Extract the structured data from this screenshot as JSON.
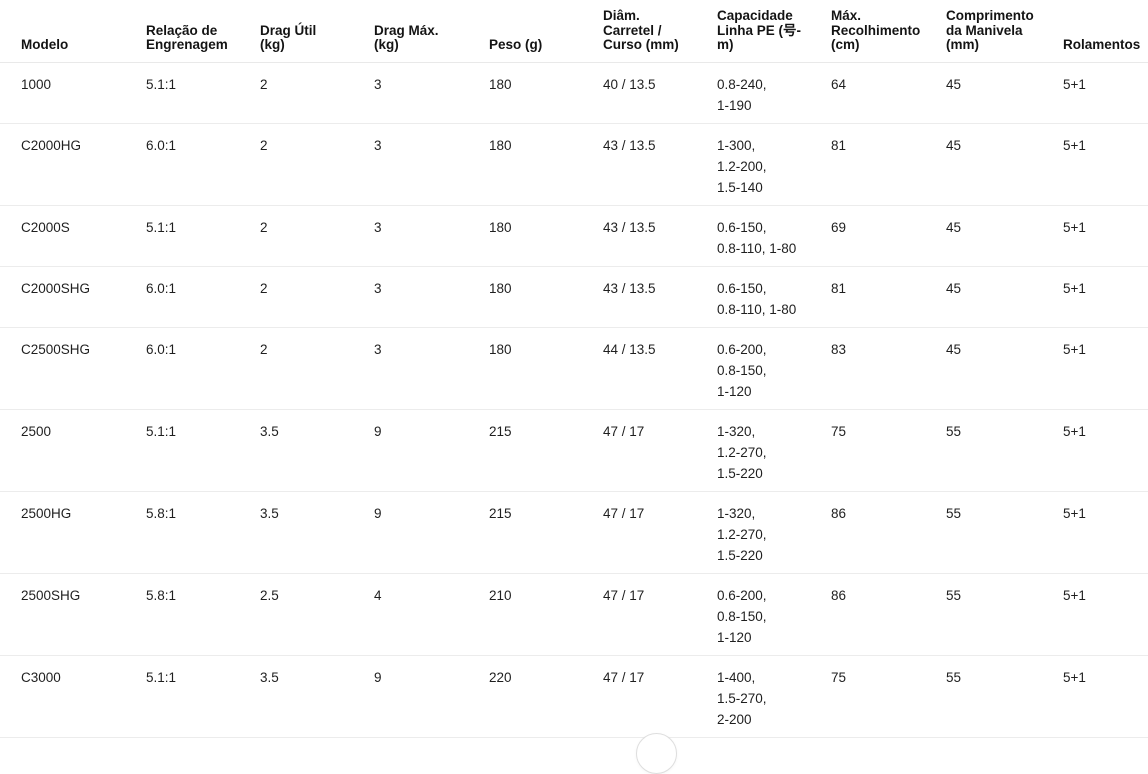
{
  "colors": {
    "background": "#ffffff",
    "text": "#1f1f1f",
    "header_text": "#141414",
    "divider": "#ececec"
  },
  "icons": {
    "floating_button": "circle-button"
  },
  "table": {
    "columns": [
      {
        "id": "model",
        "lines": [
          "Modelo"
        ]
      },
      {
        "id": "gear_ratio",
        "lines": [
          "Relação de",
          "Engrenagem"
        ]
      },
      {
        "id": "drag_util",
        "lines": [
          "Drag Útil",
          "(kg)"
        ]
      },
      {
        "id": "drag_max",
        "lines": [
          "Drag Máx.",
          "(kg)"
        ]
      },
      {
        "id": "weight",
        "lines": [
          "Peso (g)"
        ]
      },
      {
        "id": "spool",
        "lines": [
          "Diâm.",
          "Carretel /",
          "Curso (mm)"
        ]
      },
      {
        "id": "pe_capacity",
        "lines": [
          "Capacidade",
          "Linha PE (号-",
          "m)"
        ]
      },
      {
        "id": "max_retrieve",
        "lines": [
          "Máx.",
          "Recolhimento",
          "(cm)"
        ]
      },
      {
        "id": "handle_length",
        "lines": [
          "Comprimento",
          "da Manivela",
          "(mm)"
        ]
      },
      {
        "id": "bearings",
        "lines": [
          "Rolamentos"
        ]
      }
    ],
    "rows": [
      {
        "model": "1000",
        "gear_ratio": "5.1:1",
        "drag_util": "2",
        "drag_max": "3",
        "weight": "180",
        "spool": "40 / 13.5",
        "pe_capacity": [
          "0.8-240,",
          "1-190"
        ],
        "max_retrieve": "64",
        "handle_length": "45",
        "bearings": "5+1"
      },
      {
        "model": "C2000HG",
        "gear_ratio": "6.0:1",
        "drag_util": "2",
        "drag_max": "3",
        "weight": "180",
        "spool": "43 / 13.5",
        "pe_capacity": [
          "1-300,",
          "1.2-200,",
          "1.5-140"
        ],
        "max_retrieve": "81",
        "handle_length": "45",
        "bearings": "5+1"
      },
      {
        "model": "C2000S",
        "gear_ratio": "5.1:1",
        "drag_util": "2",
        "drag_max": "3",
        "weight": "180",
        "spool": "43 / 13.5",
        "pe_capacity": [
          "0.6-150,",
          "0.8-110, 1-80"
        ],
        "max_retrieve": "69",
        "handle_length": "45",
        "bearings": "5+1"
      },
      {
        "model": "C2000SHG",
        "gear_ratio": "6.0:1",
        "drag_util": "2",
        "drag_max": "3",
        "weight": "180",
        "spool": "43 / 13.5",
        "pe_capacity": [
          "0.6-150,",
          "0.8-110, 1-80"
        ],
        "max_retrieve": "81",
        "handle_length": "45",
        "bearings": "5+1"
      },
      {
        "model": "C2500SHG",
        "gear_ratio": "6.0:1",
        "drag_util": "2",
        "drag_max": "3",
        "weight": "180",
        "spool": "44 / 13.5",
        "pe_capacity": [
          "0.6-200,",
          "0.8-150,",
          "1-120"
        ],
        "max_retrieve": "83",
        "handle_length": "45",
        "bearings": "5+1"
      },
      {
        "model": "2500",
        "gear_ratio": "5.1:1",
        "drag_util": "3.5",
        "drag_max": "9",
        "weight": "215",
        "spool": "47 / 17",
        "pe_capacity": [
          "1-320,",
          "1.2-270,",
          "1.5-220"
        ],
        "max_retrieve": "75",
        "handle_length": "55",
        "bearings": "5+1"
      },
      {
        "model": "2500HG",
        "gear_ratio": "5.8:1",
        "drag_util": "3.5",
        "drag_max": "9",
        "weight": "215",
        "spool": "47 / 17",
        "pe_capacity": [
          "1-320,",
          "1.2-270,",
          "1.5-220"
        ],
        "max_retrieve": "86",
        "handle_length": "55",
        "bearings": "5+1"
      },
      {
        "model": "2500SHG",
        "gear_ratio": "5.8:1",
        "drag_util": "2.5",
        "drag_max": "4",
        "weight": "210",
        "spool": "47 / 17",
        "pe_capacity": [
          "0.6-200,",
          "0.8-150,",
          "1-120"
        ],
        "max_retrieve": "86",
        "handle_length": "55",
        "bearings": "5+1"
      },
      {
        "model": "C3000",
        "gear_ratio": "5.1:1",
        "drag_util": "3.5",
        "drag_max": "9",
        "weight": "220",
        "spool": "47 / 17",
        "pe_capacity": [
          "1-400,",
          "1.5-270,",
          "2-200"
        ],
        "max_retrieve": "75",
        "handle_length": "55",
        "bearings": "5+1"
      }
    ]
  }
}
